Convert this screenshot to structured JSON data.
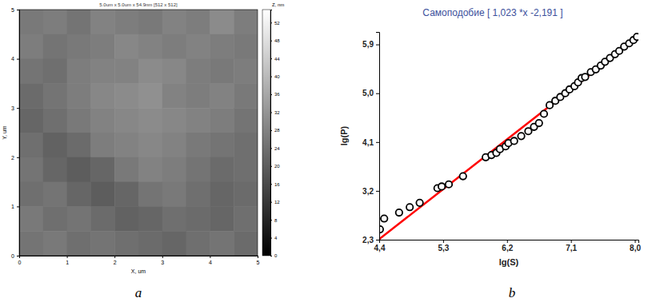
{
  "chart_data": [
    {
      "type": "heatmap",
      "title": "5.0um x 5.0um x 54.9nm [512 x 512]",
      "x_label": "X, um",
      "y_label": "Y, um",
      "panel_label": "a",
      "xlim": [
        0,
        5
      ],
      "ylim": [
        0,
        5
      ],
      "xticks": [
        0,
        1,
        2,
        3,
        4,
        5
      ],
      "yticks": [
        0,
        1,
        2,
        3,
        4,
        5
      ],
      "cells": [
        [
          26,
          27,
          25,
          28,
          27,
          26,
          28,
          27,
          30,
          27
        ],
        [
          27,
          25,
          26,
          27,
          29,
          28,
          27,
          28,
          27,
          26
        ],
        [
          25,
          24,
          27,
          28,
          28,
          30,
          29,
          27,
          26,
          27
        ],
        [
          23,
          25,
          27,
          29,
          30,
          31,
          28,
          27,
          28,
          26
        ],
        [
          22,
          24,
          26,
          28,
          29,
          30,
          29,
          28,
          27,
          25
        ],
        [
          24,
          21,
          23,
          27,
          28,
          29,
          28,
          26,
          25,
          24
        ],
        [
          25,
          22,
          20,
          22,
          26,
          28,
          27,
          25,
          23,
          24
        ],
        [
          24,
          25,
          22,
          20,
          22,
          25,
          26,
          24,
          22,
          23
        ],
        [
          26,
          24,
          25,
          23,
          21,
          22,
          24,
          23,
          22,
          24
        ],
        [
          25,
          26,
          24,
          25,
          24,
          23,
          22,
          24,
          25,
          23
        ]
      ],
      "color_bar": {
        "label": "Z, nm",
        "range": [
          0,
          54.9
        ],
        "ticks": [
          0,
          4,
          8,
          12,
          16,
          20,
          24,
          28,
          32,
          36,
          40,
          44,
          48,
          52
        ]
      }
    },
    {
      "type": "scatter",
      "title": "Самоподобие [ 1,023 *x -2,191 ]",
      "x_label": "lg(S)",
      "y_label": "lg(P)",
      "panel_label": "b",
      "xlim": [
        4.4,
        8.05
      ],
      "ylim": [
        2.3,
        6.13
      ],
      "xticks": [
        {
          "value": 4.4,
          "label": "4,4"
        },
        {
          "value": 5.3,
          "label": "5,3"
        },
        {
          "value": 6.2,
          "label": "6,2"
        },
        {
          "value": 7.1,
          "label": "7,1"
        },
        {
          "value": 8.0,
          "label": "8,0"
        }
      ],
      "yticks": [
        {
          "value": 2.3,
          "label": "2,3"
        },
        {
          "value": 3.2,
          "label": "3,2"
        },
        {
          "value": 4.1,
          "label": "4,1"
        },
        {
          "value": 5.0,
          "label": "5,0"
        },
        {
          "value": 5.9,
          "label": "5,9"
        }
      ],
      "grid": false,
      "series": [
        {
          "type": "scatter",
          "marker": "circle",
          "color": "#000000",
          "x": [
            4.41,
            4.47,
            4.68,
            4.83,
            4.97,
            5.22,
            5.28,
            5.38,
            5.58,
            5.9,
            5.98,
            6.05,
            6.1,
            6.18,
            6.22,
            6.3,
            6.4,
            6.5,
            6.58,
            6.65,
            6.72,
            6.8,
            6.88,
            6.95,
            7.02,
            7.08,
            7.15,
            7.2,
            7.25,
            7.3,
            7.38,
            7.45,
            7.52,
            7.58,
            7.65,
            7.72,
            7.78,
            7.85,
            7.92,
            7.98,
            8.03
          ],
          "values": [
            2.49,
            2.69,
            2.8,
            2.9,
            2.98,
            3.25,
            3.28,
            3.32,
            3.47,
            3.82,
            3.86,
            3.9,
            3.97,
            4.02,
            4.08,
            4.12,
            4.21,
            4.3,
            4.38,
            4.45,
            4.62,
            4.78,
            4.86,
            4.93,
            5.0,
            5.07,
            5.13,
            5.2,
            5.28,
            5.3,
            5.39,
            5.44,
            5.51,
            5.58,
            5.65,
            5.72,
            5.78,
            5.86,
            5.92,
            5.98,
            6.04
          ]
        },
        {
          "type": "line",
          "color": "#ff0000",
          "line_style": "solid",
          "x": [
            4.4,
            8.05
          ],
          "values": [
            2.31,
            6.04
          ]
        }
      ]
    }
  ]
}
